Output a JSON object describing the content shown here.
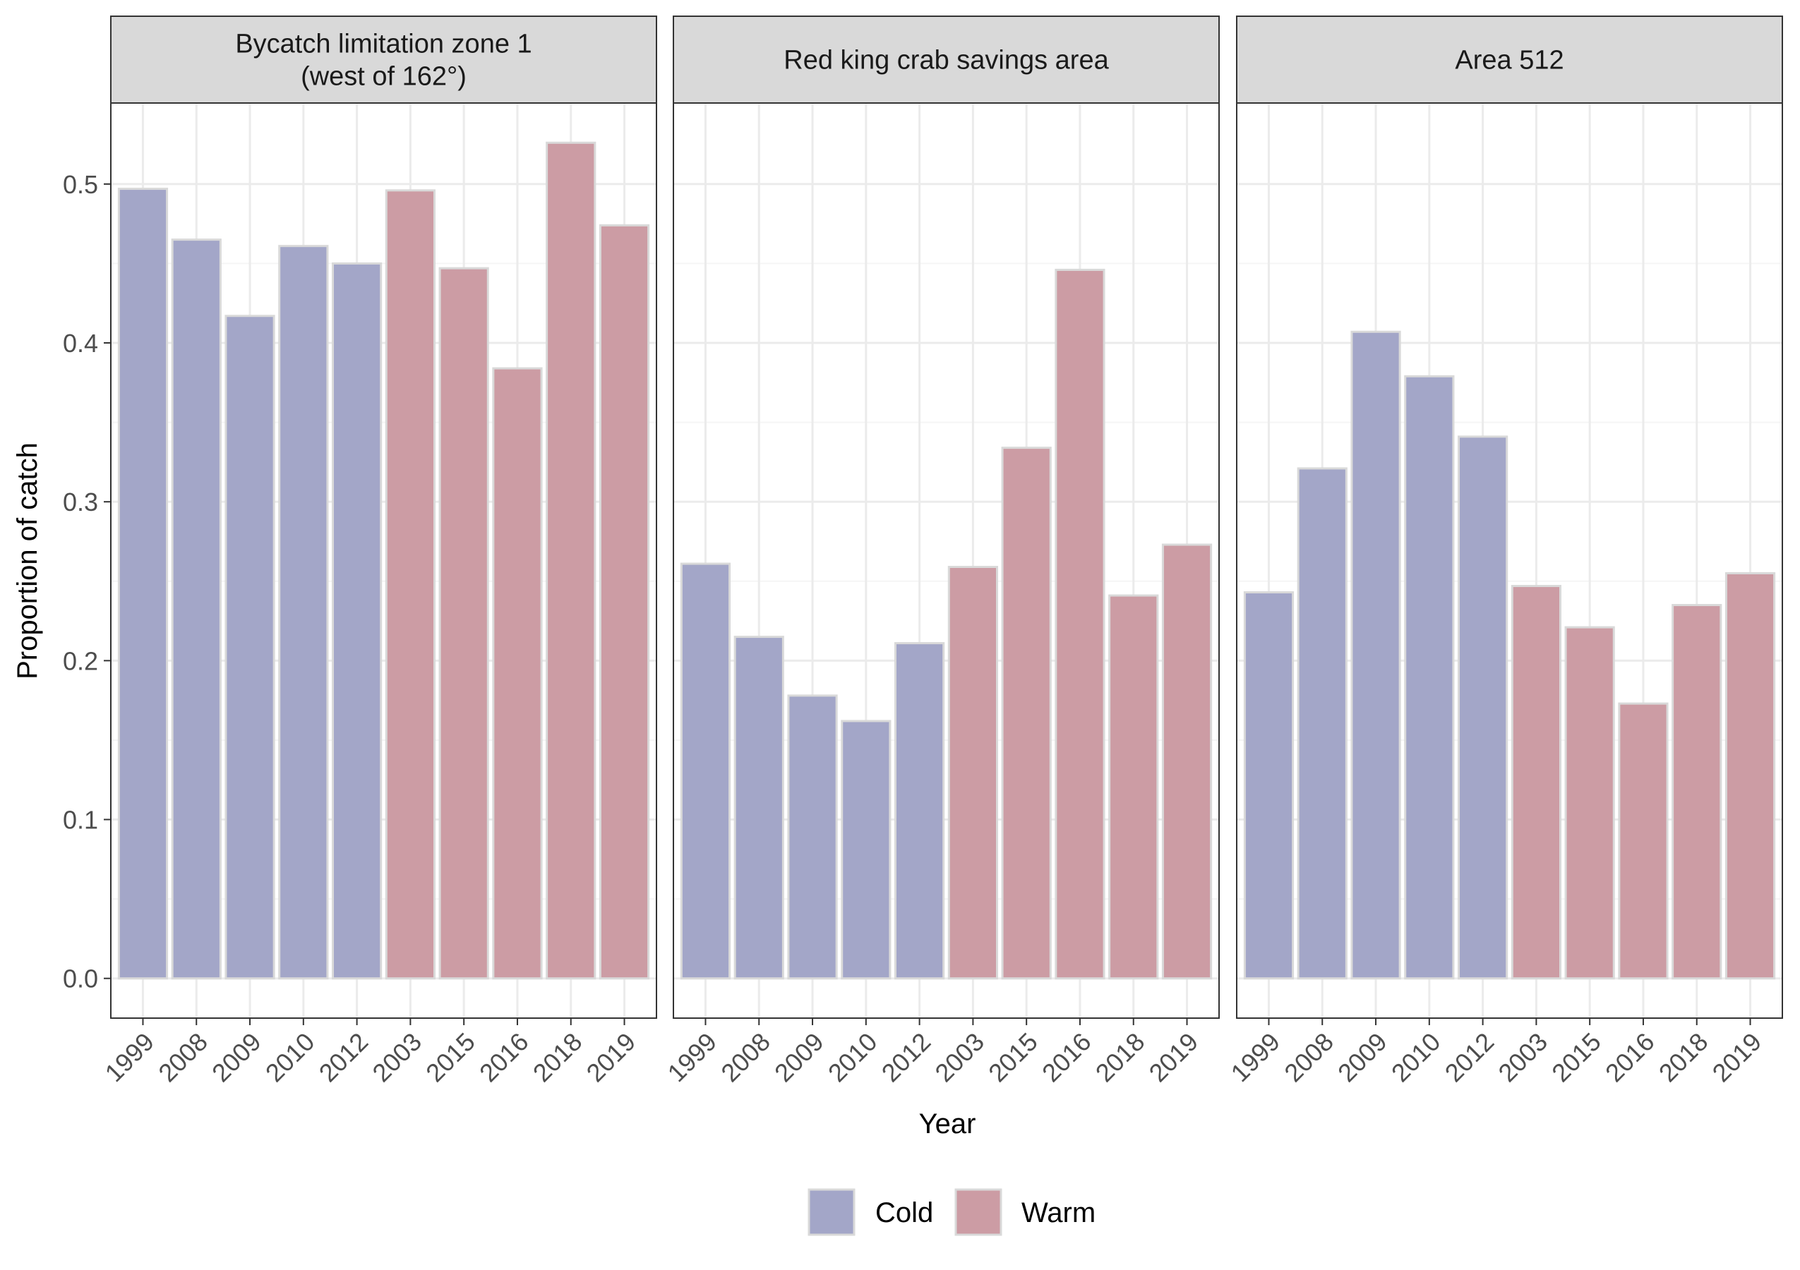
{
  "chart_data": {
    "type": "bar",
    "ylabel": "Proportion of catch",
    "xlabel": "Year",
    "ylim": [
      -0.025,
      0.551
    ],
    "yticks": [
      "0.0",
      "0.1",
      "0.2",
      "0.3",
      "0.4",
      "0.5"
    ],
    "grid": true,
    "legend_position": "bottom",
    "categories": [
      "1999",
      "2008",
      "2009",
      "2010",
      "2012",
      "2003",
      "2015",
      "2016",
      "2018",
      "2019"
    ],
    "group_of_category": [
      "Cold",
      "Cold",
      "Cold",
      "Cold",
      "Cold",
      "Warm",
      "Warm",
      "Warm",
      "Warm",
      "Warm"
    ],
    "legend": [
      {
        "label": "Cold",
        "color": "#a3a6c8"
      },
      {
        "label": "Warm",
        "color": "#cc9ca4"
      }
    ],
    "facets": [
      {
        "title_lines": [
          "Bycatch limitation zone 1",
          "(west of 162°)"
        ],
        "values": [
          0.497,
          0.465,
          0.417,
          0.461,
          0.45,
          0.496,
          0.447,
          0.384,
          0.526,
          0.474
        ]
      },
      {
        "title_lines": [
          "Red king crab savings area"
        ],
        "values": [
          0.261,
          0.215,
          0.178,
          0.162,
          0.211,
          0.259,
          0.334,
          0.446,
          0.241,
          0.273
        ]
      },
      {
        "title_lines": [
          "Area 512"
        ],
        "values": [
          0.243,
          0.321,
          0.407,
          0.379,
          0.341,
          0.247,
          0.221,
          0.173,
          0.235,
          0.255
        ]
      }
    ]
  },
  "colors": {
    "bar_outline": "#d9d9d9",
    "grid_major": "#ebebeb",
    "grid_minor": "#f5f5f5",
    "panel_border": "#333333",
    "strip_fill": "#d9d9d9"
  }
}
